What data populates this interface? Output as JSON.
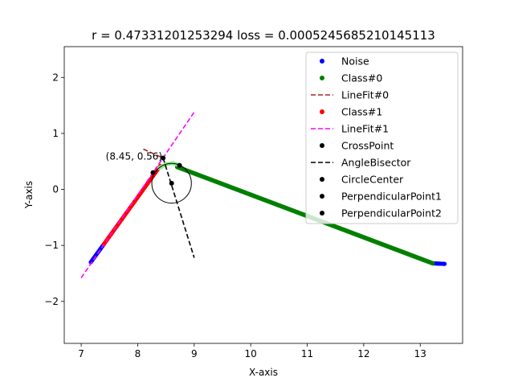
{
  "chart_data": {
    "type": "scatter",
    "title": "r = 0.47331201253294 loss = 0.0005245685210145113",
    "xlabel": "X-axis",
    "ylabel": "Y-axis",
    "xlim": [
      6.7,
      13.75
    ],
    "ylim": [
      -2.75,
      2.55
    ],
    "xticks": [
      7,
      8,
      9,
      10,
      11,
      12,
      13
    ],
    "yticks": [
      -2,
      -1,
      0,
      1,
      2
    ],
    "grid": false,
    "legend_position": "upper right",
    "colors": {
      "noise": "#0000ff",
      "class0": "#008000",
      "linefit0": "#b22222",
      "class1": "#ff0000",
      "linefit1": "#ff00ff",
      "highlight_arc": "#90ee90",
      "black": "#000000"
    },
    "legend": [
      {
        "label": "Noise",
        "kind": "marker",
        "color": "#0000ff"
      },
      {
        "label": "Class#0",
        "kind": "marker",
        "color": "#008000"
      },
      {
        "label": "LineFit#0",
        "kind": "dashed",
        "color": "#b22222"
      },
      {
        "label": "Class#1",
        "kind": "marker",
        "color": "#ff0000"
      },
      {
        "label": "LineFit#1",
        "kind": "dashed",
        "color": "#ff00ff"
      },
      {
        "label": "CrossPoint",
        "kind": "marker",
        "color": "#000000"
      },
      {
        "label": "AngleBisector",
        "kind": "dashed",
        "color": "#000000"
      },
      {
        "label": "CircleCenter",
        "kind": "marker",
        "color": "#000000"
      },
      {
        "label": "PerpendicularPoint1",
        "kind": "marker",
        "color": "#000000"
      },
      {
        "label": "PerpendicularPoint2",
        "kind": "marker",
        "color": "#000000"
      }
    ],
    "series": {
      "noise_segments": [
        [
          [
            7.17,
            -1.3
          ],
          [
            7.4,
            -0.98
          ]
        ],
        [
          [
            13.22,
            -1.32
          ],
          [
            13.43,
            -1.33
          ]
        ]
      ],
      "class0_segment": [
        [
          8.7,
          0.4
        ],
        [
          13.22,
          -1.32
        ]
      ],
      "class1_segment": [
        [
          7.4,
          -0.98
        ],
        [
          8.4,
          0.42
        ]
      ],
      "linefit0": [
        [
          8.1,
          0.72
        ],
        [
          8.45,
          0.56
        ]
      ],
      "linefit1": [
        [
          7.0,
          -1.58
        ],
        [
          9.0,
          1.38
        ]
      ],
      "highlight_arc": [
        [
          8.38,
          0.38
        ],
        [
          8.5,
          0.45
        ],
        [
          8.62,
          0.47
        ],
        [
          8.72,
          0.44
        ]
      ],
      "angle_bisector": [
        [
          8.45,
          0.56
        ],
        [
          9.0,
          -1.22
        ]
      ],
      "cross_point": [
        8.45,
        0.56
      ],
      "circle_center": [
        8.6,
        0.11
      ],
      "circle_radius": 0.35,
      "perpendicular_point_1": [
        8.27,
        0.3
      ],
      "perpendicular_point_2": [
        8.74,
        0.43
      ]
    },
    "annotations": [
      {
        "text": "(8.45, 0.56)",
        "x": 8.45,
        "y": 0.56
      }
    ]
  }
}
